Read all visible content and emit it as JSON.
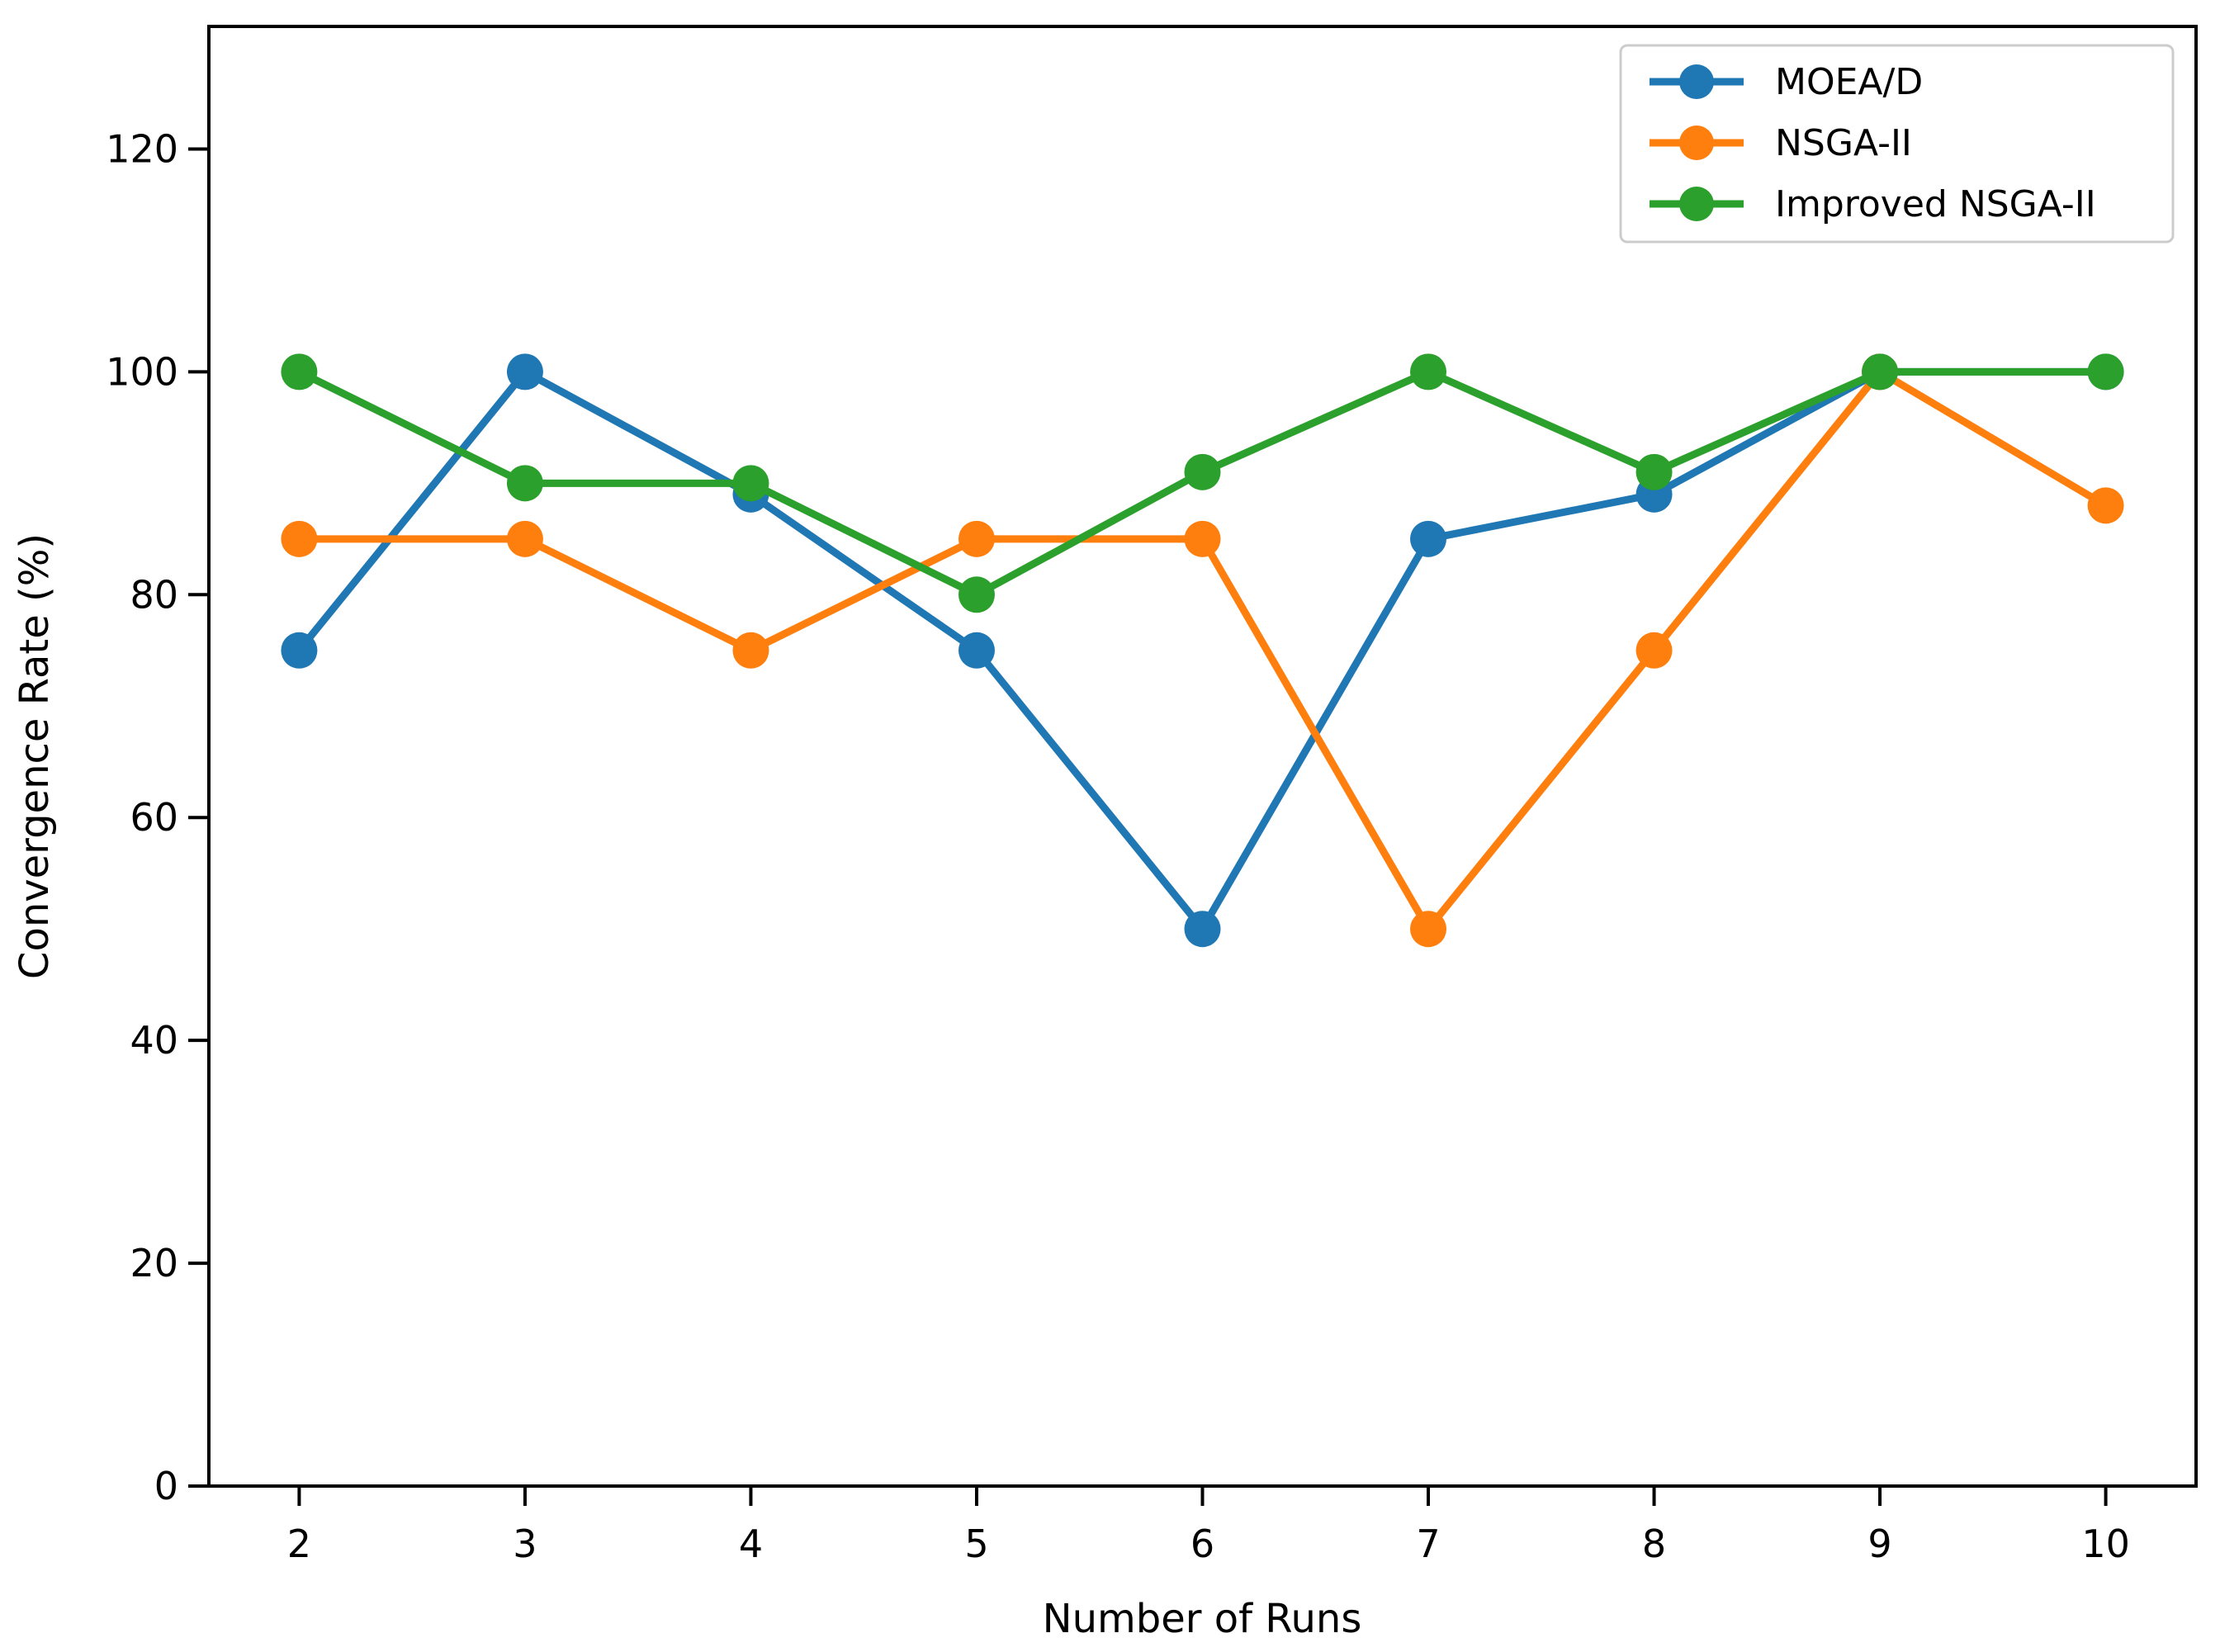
{
  "figure": {
    "background": "#ffffff",
    "title": ""
  },
  "chart_data": {
    "type": "line",
    "x": [
      2,
      3,
      4,
      5,
      6,
      7,
      8,
      9,
      10
    ],
    "series": [
      {
        "name": "MOEA/D",
        "color": "#1f77b4",
        "values": [
          75,
          100,
          89,
          75,
          50,
          85,
          89,
          100,
          100
        ]
      },
      {
        "name": "NSGA-II",
        "color": "#ff7f0e",
        "values": [
          85,
          85,
          75,
          85,
          85,
          50,
          75,
          100,
          88
        ]
      },
      {
        "name": "Improved NSGA-II",
        "color": "#2ca02c",
        "values": [
          100,
          90,
          90,
          80,
          91,
          100,
          91,
          100,
          100
        ]
      }
    ],
    "title": "",
    "xlabel": "Number of Runs",
    "ylabel": "Convergence Rate (%)",
    "xlim": [
      1.6,
      10.4
    ],
    "ylim": [
      0,
      131
    ],
    "xticks": [
      2,
      3,
      4,
      5,
      6,
      7,
      8,
      9,
      10
    ],
    "yticks": [
      0,
      20,
      40,
      60,
      80,
      100,
      120
    ],
    "grid": false,
    "marker": "circle",
    "legend": {
      "position": "upper right",
      "border_color": "#cccccc",
      "background": "#ffffff",
      "entries": [
        "MOEA/D",
        "NSGA-II",
        "Improved NSGA-II"
      ]
    },
    "axis_color": "#000000"
  }
}
